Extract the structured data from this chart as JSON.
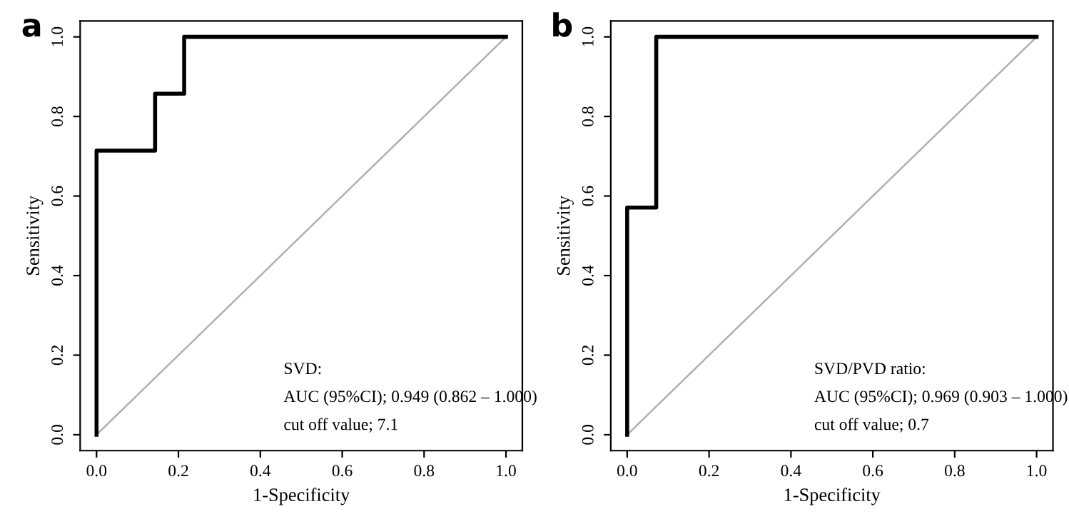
{
  "chart_data": [
    {
      "type": "line",
      "title": "a",
      "xlabel": "1-Specificity",
      "ylabel": "Sensitivity",
      "series": [
        {
          "x": [
            0,
            0,
            0.143,
            0.143,
            0.214,
            0.214,
            1
          ],
          "values": [
            0,
            0.714,
            0.714,
            0.857,
            0.857,
            1,
            1
          ],
          "color": "#000000"
        },
        {
          "x": [
            0,
            1
          ],
          "values": [
            0,
            1
          ],
          "color": "#b0b0b0"
        }
      ],
      "xlim": [
        -0.04,
        1.04
      ],
      "ylim": [
        -0.04,
        1.04
      ],
      "xticks": [
        {
          "value": 0,
          "label": "0.0"
        },
        {
          "value": 0.2,
          "label": "0.2"
        },
        {
          "value": 0.4,
          "label": "0.4"
        },
        {
          "value": 0.6,
          "label": "0.6"
        },
        {
          "value": 0.8,
          "label": "0.8"
        },
        {
          "value": 1,
          "label": "1.0"
        }
      ],
      "yticks": [
        {
          "value": 0,
          "label": "0.0"
        },
        {
          "value": 0.2,
          "label": "0.2"
        },
        {
          "value": 0.4,
          "label": "0.4"
        },
        {
          "value": 0.6,
          "label": "0.6"
        },
        {
          "value": 0.8,
          "label": "0.8"
        },
        {
          "value": 1,
          "label": "1.0"
        }
      ],
      "annotations": [
        "SVD:",
        "AUC (95%CI); 0.949 (0.862 – 1.000)",
        "cut off value; 7.1"
      ]
    },
    {
      "type": "line",
      "title": "b",
      "xlabel": "1-Specificity",
      "ylabel": "Sensitivity",
      "series": [
        {
          "x": [
            0,
            0,
            0.071,
            0.071,
            1
          ],
          "values": [
            0,
            0.571,
            0.571,
            1,
            1
          ],
          "color": "#000000"
        },
        {
          "x": [
            0,
            1
          ],
          "values": [
            0,
            1
          ],
          "color": "#b0b0b0"
        }
      ],
      "xlim": [
        -0.04,
        1.04
      ],
      "ylim": [
        -0.04,
        1.04
      ],
      "xticks": [
        {
          "value": 0,
          "label": "0.0"
        },
        {
          "value": 0.2,
          "label": "0.2"
        },
        {
          "value": 0.4,
          "label": "0.4"
        },
        {
          "value": 0.6,
          "label": "0.6"
        },
        {
          "value": 0.8,
          "label": "0.8"
        },
        {
          "value": 1,
          "label": "1.0"
        }
      ],
      "yticks": [
        {
          "value": 0,
          "label": "0.0"
        },
        {
          "value": 0.2,
          "label": "0.2"
        },
        {
          "value": 0.4,
          "label": "0.4"
        },
        {
          "value": 0.6,
          "label": "0.6"
        },
        {
          "value": 0.8,
          "label": "0.8"
        },
        {
          "value": 1,
          "label": "1.0"
        }
      ],
      "annotations": [
        "SVD/PVD ratio:",
        "AUC (95%CI); 0.969 (0.903 – 1.000)",
        "cut off value; 0.7"
      ]
    }
  ]
}
